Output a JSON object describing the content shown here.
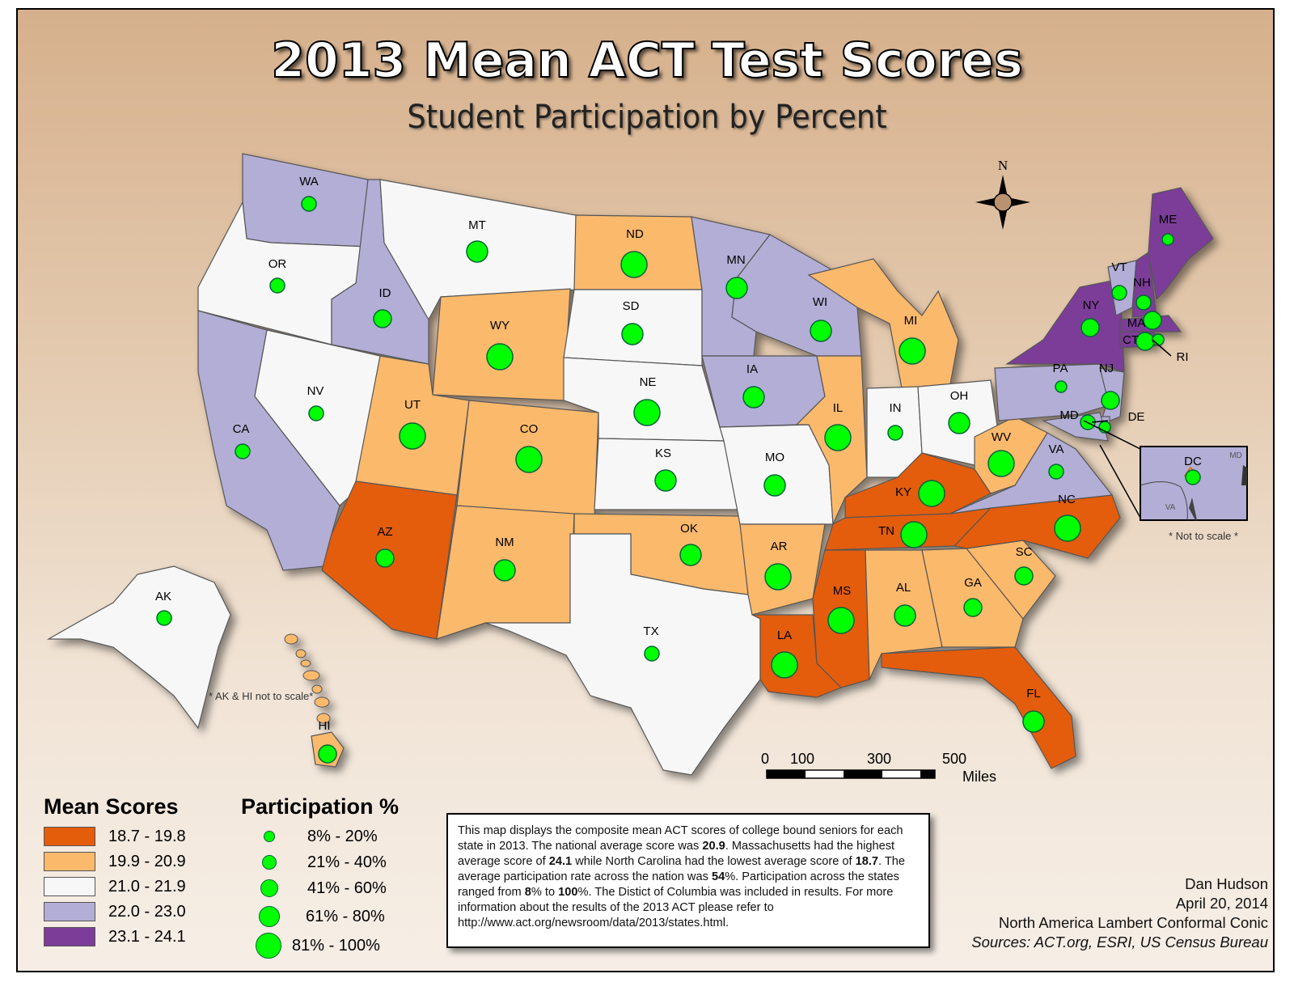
{
  "title": "2013 Mean ACT Test Scores",
  "subtitle": "Student Participation by Percent",
  "colors": {
    "c1": "#e35d0a",
    "c2": "#fbb96c",
    "c3": "#f7f7f7",
    "c4": "#b3aed6",
    "c5": "#7c3d99",
    "dot": "#00ff00",
    "border": "#555555"
  },
  "legend": {
    "mean_title": "Mean Scores",
    "mean_classes": [
      {
        "label": "18.7 - 19.8",
        "color": "#e35d0a"
      },
      {
        "label": "19.9 - 20.9",
        "color": "#fbb96c"
      },
      {
        "label": "21.0 - 21.9",
        "color": "#f7f7f7"
      },
      {
        "label": "22.0 - 23.0",
        "color": "#b3aed6"
      },
      {
        "label": "23.1 - 24.1",
        "color": "#7c3d99"
      }
    ],
    "part_title": "Participation %",
    "part_classes": [
      {
        "label": "8% - 20%",
        "level": 1
      },
      {
        "label": "21% - 40%",
        "level": 2
      },
      {
        "label": "41% - 60%",
        "level": 3
      },
      {
        "label": "61% - 80%",
        "level": 4
      },
      {
        "label": "81% - 100%",
        "level": 5
      }
    ]
  },
  "states": [
    {
      "abbr": "WA",
      "score_class": 4,
      "participation_class": 2
    },
    {
      "abbr": "OR",
      "score_class": 3,
      "participation_class": 2
    },
    {
      "abbr": "CA",
      "score_class": 4,
      "participation_class": 2
    },
    {
      "abbr": "NV",
      "score_class": 3,
      "participation_class": 2
    },
    {
      "abbr": "ID",
      "score_class": 4,
      "participation_class": 3
    },
    {
      "abbr": "MT",
      "score_class": 3,
      "participation_class": 4
    },
    {
      "abbr": "WY",
      "score_class": 2,
      "participation_class": 5
    },
    {
      "abbr": "UT",
      "score_class": 2,
      "participation_class": 5
    },
    {
      "abbr": "AZ",
      "score_class": 1,
      "participation_class": 3
    },
    {
      "abbr": "CO",
      "score_class": 2,
      "participation_class": 5
    },
    {
      "abbr": "NM",
      "score_class": 2,
      "participation_class": 4
    },
    {
      "abbr": "ND",
      "score_class": 2,
      "participation_class": 5
    },
    {
      "abbr": "SD",
      "score_class": 3,
      "participation_class": 4
    },
    {
      "abbr": "NE",
      "score_class": 3,
      "participation_class": 5
    },
    {
      "abbr": "KS",
      "score_class": 3,
      "participation_class": 4
    },
    {
      "abbr": "OK",
      "score_class": 2,
      "participation_class": 4
    },
    {
      "abbr": "TX",
      "score_class": 3,
      "participation_class": 2
    },
    {
      "abbr": "MN",
      "score_class": 4,
      "participation_class": 4
    },
    {
      "abbr": "IA",
      "score_class": 4,
      "participation_class": 4
    },
    {
      "abbr": "MO",
      "score_class": 3,
      "participation_class": 4
    },
    {
      "abbr": "AR",
      "score_class": 2,
      "participation_class": 5
    },
    {
      "abbr": "LA",
      "score_class": 1,
      "participation_class": 5
    },
    {
      "abbr": "WI",
      "score_class": 4,
      "participation_class": 4
    },
    {
      "abbr": "IL",
      "score_class": 2,
      "participation_class": 5
    },
    {
      "abbr": "MI",
      "score_class": 2,
      "participation_class": 5
    },
    {
      "abbr": "IN",
      "score_class": 3,
      "participation_class": 2
    },
    {
      "abbr": "OH",
      "score_class": 3,
      "participation_class": 4
    },
    {
      "abbr": "KY",
      "score_class": 1,
      "participation_class": 5
    },
    {
      "abbr": "TN",
      "score_class": 1,
      "participation_class": 5
    },
    {
      "abbr": "MS",
      "score_class": 1,
      "participation_class": 5
    },
    {
      "abbr": "AL",
      "score_class": 2,
      "participation_class": 4
    },
    {
      "abbr": "GA",
      "score_class": 2,
      "participation_class": 3
    },
    {
      "abbr": "FL",
      "score_class": 1,
      "participation_class": 4
    },
    {
      "abbr": "SC",
      "score_class": 2,
      "participation_class": 3
    },
    {
      "abbr": "NC",
      "score_class": 1,
      "participation_class": 5
    },
    {
      "abbr": "VA",
      "score_class": 4,
      "participation_class": 2
    },
    {
      "abbr": "WV",
      "score_class": 2,
      "participation_class": 5
    },
    {
      "abbr": "PA",
      "score_class": 4,
      "participation_class": 1
    },
    {
      "abbr": "NY",
      "score_class": 5,
      "participation_class": 3
    },
    {
      "abbr": "NJ",
      "score_class": 4,
      "participation_class": 3
    },
    {
      "abbr": "DE",
      "score_class": 4,
      "participation_class": 1
    },
    {
      "abbr": "MD",
      "score_class": 4,
      "participation_class": 2
    },
    {
      "abbr": "CT",
      "score_class": 5,
      "participation_class": 3
    },
    {
      "abbr": "RI",
      "score_class": 5,
      "participation_class": 1
    },
    {
      "abbr": "MA",
      "score_class": 5,
      "participation_class": 3
    },
    {
      "abbr": "VT",
      "score_class": 4,
      "participation_class": 2
    },
    {
      "abbr": "NH",
      "score_class": 5,
      "participation_class": 2
    },
    {
      "abbr": "ME",
      "score_class": 5,
      "participation_class": 1
    },
    {
      "abbr": "AK",
      "score_class": 3,
      "participation_class": 2
    },
    {
      "abbr": "HI",
      "score_class": 2,
      "participation_class": 3
    },
    {
      "abbr": "DC",
      "score_class": 2,
      "participation_class": 3
    }
  ],
  "inset": {
    "dc_label": "DC",
    "md_label": "MD",
    "va_label": "VA",
    "note": "* Not to scale *"
  },
  "ak_hi_note": "* AK & HI not to scale*",
  "north_label": "N",
  "scale": {
    "ticks": [
      "0",
      "100",
      "300",
      "500"
    ],
    "unit": "Miles"
  },
  "description": {
    "t1": "This map displays the composite mean ACT scores of college bound seniors for each state in 2013.  The national average score was ",
    "b1": "20.9",
    "t2": ".  Massachusetts had the highest average score of ",
    "b2": "24.1",
    "t3": " while North Carolina had the lowest average score of ",
    "b3": "18.7",
    "t4": ".  The average participation rate across the nation was ",
    "b4": "54",
    "t5": "%.  Participation across the states ranged from ",
    "b5": "8",
    "t6": "% to ",
    "b6": "100",
    "t7": "%.  The Distict of Columbia was included in results. For more information about the results of the 2013 ACT please refer to http://www.act.org/newsroom/data/2013/states.html."
  },
  "credits": {
    "author": "Dan Hudson",
    "date": "April 20, 2014",
    "projection": "North America Lambert Conformal Conic",
    "sources": "Sources: ACT.org, ESRI, US Census Bureau"
  }
}
